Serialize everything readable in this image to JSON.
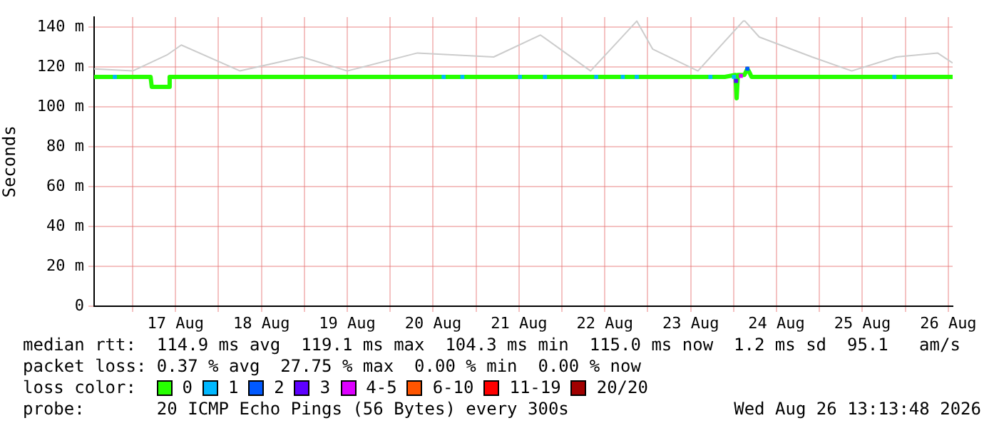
{
  "chart_data": {
    "type": "line",
    "ylabel": "Seconds",
    "legend_title": "loss color:",
    "legend": "bottom",
    "grid": true,
    "xlim": [
      "2026-08-16T13:13",
      "2026-08-26T13:13"
    ],
    "xticks": [
      {
        "value": "2026-08-17T00:00",
        "label": null
      },
      {
        "value": "2026-08-17T12:00",
        "label": "17 Aug"
      },
      {
        "value": "2026-08-18T00:00",
        "label": null
      },
      {
        "value": "2026-08-18T12:00",
        "label": "18 Aug"
      },
      {
        "value": "2026-08-19T00:00",
        "label": null
      },
      {
        "value": "2026-08-19T12:00",
        "label": "19 Aug"
      },
      {
        "value": "2026-08-20T00:00",
        "label": null
      },
      {
        "value": "2026-08-20T12:00",
        "label": "20 Aug"
      },
      {
        "value": "2026-08-21T00:00",
        "label": null
      },
      {
        "value": "2026-08-21T12:00",
        "label": "21 Aug"
      },
      {
        "value": "2026-08-22T00:00",
        "label": null
      },
      {
        "value": "2026-08-22T12:00",
        "label": "22 Aug"
      },
      {
        "value": "2026-08-23T00:00",
        "label": null
      },
      {
        "value": "2026-08-23T12:00",
        "label": "23 Aug"
      },
      {
        "value": "2026-08-24T00:00",
        "label": null
      },
      {
        "value": "2026-08-24T12:00",
        "label": "24 Aug"
      },
      {
        "value": "2026-08-25T00:00",
        "label": null
      },
      {
        "value": "2026-08-25T12:00",
        "label": "25 Aug"
      },
      {
        "value": "2026-08-26T00:00",
        "label": null
      },
      {
        "value": "2026-08-26T12:00",
        "label": "26 Aug"
      }
    ],
    "ylim": [
      0,
      145
    ],
    "yticks": [
      0,
      {
        "value": 20,
        "label": "20 m"
      },
      {
        "value": 40,
        "label": "40 m"
      },
      {
        "value": 60,
        "label": "60 m"
      },
      {
        "value": 80,
        "label": "80 m"
      },
      {
        "value": 100,
        "label": "100 m"
      },
      {
        "value": 120,
        "label": "120 m"
      },
      {
        "value": 140,
        "label": "140 m"
      }
    ],
    "series": [
      {
        "color": "#cccccc",
        "x": [
          "2026-08-16T13:13",
          "2026-08-17T00:00",
          "2026-08-17T09:35",
          "2026-08-17T13:35",
          "2026-08-18T06:00",
          "2026-08-18T23:20",
          "2026-08-19T12:00",
          "2026-08-20T07:35",
          "2026-08-21T04:55",
          "2026-08-21T18:00",
          "2026-08-22T08:00",
          "2026-08-22T20:55",
          "2026-08-23T01:20",
          "2026-08-23T14:00",
          "2026-08-24T02:40",
          "2026-08-24T03:10",
          "2026-08-24T07:10",
          "2026-08-24T21:55",
          "2026-08-25T09:00",
          "2026-08-25T21:30",
          "2026-08-26T09:00",
          "2026-08-26T13:13"
        ],
        "values": [
          119,
          118,
          126,
          131,
          118,
          125,
          118,
          127,
          125,
          136,
          118,
          143,
          129,
          118,
          143,
          143,
          135,
          125,
          118,
          125,
          127,
          122
        ]
      },
      {
        "name": "0",
        "color": "#26ff00",
        "marker": "none",
        "x": [
          "2026-08-16T13:13",
          "2026-08-17T05:00",
          "2026-08-17T05:20",
          "2026-08-17T10:00",
          "2026-08-17T10:20",
          "2026-08-23T21:30",
          "2026-08-24T00:30",
          "2026-08-24T00:50",
          "2026-08-24T01:10",
          "2026-08-24T03:00",
          "2026-08-24T03:50",
          "2026-08-24T04:30",
          "2026-08-24T05:00",
          "2026-08-26T13:13"
        ],
        "values": [
          115,
          115,
          110,
          110,
          115,
          115,
          116,
          104.3,
          116,
          116,
          119.1,
          117,
          115,
          115
        ]
      },
      {
        "name": "1",
        "type": "scatter",
        "color": "#00b8ff",
        "marker": "square",
        "x": [
          "2026-08-16T19:00",
          "2026-08-20T14:55",
          "2026-08-20T20:10",
          "2026-08-21T12:15",
          "2026-08-21T19:15",
          "2026-08-22T09:35",
          "2026-08-22T17:00",
          "2026-08-22T20:55",
          "2026-08-23T17:30",
          "2026-08-24T00:05",
          "2026-08-25T20:55"
        ],
        "values": [
          115,
          115,
          115,
          115,
          115,
          115,
          115,
          115,
          115,
          115,
          115
        ]
      },
      {
        "name": "2",
        "type": "scatter",
        "color": "#0059ff",
        "marker": "square",
        "x": [
          "2026-08-24T03:50"
        ],
        "values": [
          119.1
        ]
      },
      {
        "name": "3",
        "type": "scatter",
        "color": "#5e00ff",
        "marker": "square",
        "x": [
          "2026-08-24T00:40"
        ],
        "values": [
          113
        ]
      },
      {
        "name": "4-5",
        "type": "scatter",
        "color": "#dd00ff",
        "marker": "square",
        "x": [
          "2026-08-24T02:00"
        ],
        "values": [
          115.5
        ]
      },
      {
        "name": "6-10",
        "type": "scatter",
        "color": "#ff5500",
        "marker": "square"
      },
      {
        "name": "11-19",
        "type": "scatter",
        "color": "#ff0000",
        "marker": "square"
      },
      {
        "name": "20/20",
        "type": "scatter",
        "color": "#a10000",
        "marker": "square"
      }
    ],
    "annotations": [
      "median rtt:  114.9 ms avg  119.1 ms max  104.3 ms min  115.0 ms now  1.2 ms sd  95.1   am/s",
      "packet loss: 0.37 % avg  27.75 % max  0.00 % min  0.00 % now",
      "probe:       20 ICMP Echo Pings (56 Bytes) every 300s",
      "Wed Aug 26 13:13:48 2026"
    ]
  }
}
